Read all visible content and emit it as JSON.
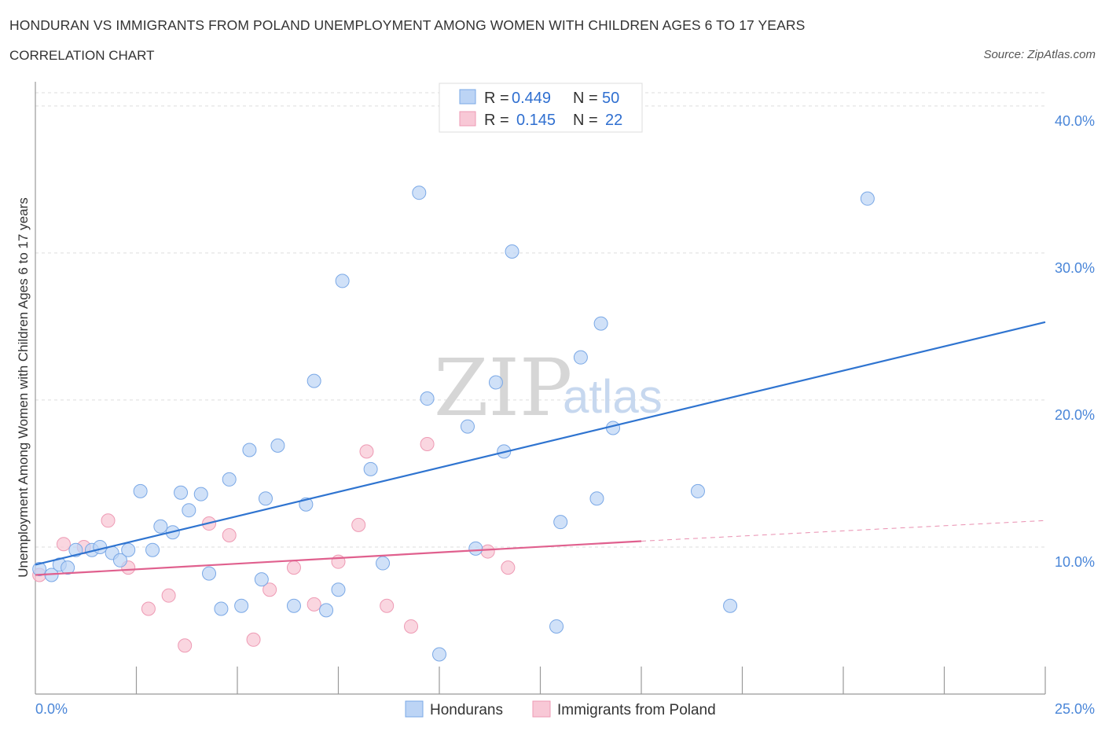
{
  "title": "HONDURAN VS IMMIGRANTS FROM POLAND UNEMPLOYMENT AMONG WOMEN WITH CHILDREN AGES 6 TO 17 YEARS",
  "subtitle": "CORRELATION CHART",
  "source": "Source: ZipAtlas.com",
  "watermark": {
    "zip": "ZIP",
    "atlas": "atlas"
  },
  "legend": {
    "rows": [
      {
        "r_label": "R =",
        "r_value": "0.449",
        "n_label": "N =",
        "n_value": "50"
      },
      {
        "r_label": "R =",
        "r_value": "0.145",
        "n_label": "N =",
        "n_value": "22"
      }
    ]
  },
  "bottom_legend": [
    "Hondurans",
    "Immigrants from Poland"
  ],
  "colors": {
    "hondurans_fill": "#bcd4f5",
    "hondurans_stroke": "#7aa8e6",
    "hondurans_line": "#2f74d0",
    "poland_fill": "#f8c8d6",
    "poland_stroke": "#ee9ab4",
    "poland_line": "#e0608e",
    "tick_color": "#4a86d8",
    "grid": "#dddddd"
  },
  "chart_data": {
    "type": "scatter",
    "xlabel": "",
    "ylabel": "Unemployment Among Women with Children Ages 6 to 17 years",
    "xlim": [
      0,
      25
    ],
    "ylim": [
      0,
      40.9
    ],
    "x_tick_labels": [
      "0.0%",
      "25.0%"
    ],
    "y_ticks": [
      10,
      20,
      30,
      40
    ],
    "y_tick_labels": [
      "10.0%",
      "20.0%",
      "30.0%",
      "40.0%"
    ],
    "series": [
      {
        "name": "Hondurans",
        "R": 0.449,
        "N": 50,
        "points": [
          [
            0.1,
            8.5
          ],
          [
            0.4,
            8.1
          ],
          [
            0.6,
            8.8
          ],
          [
            0.8,
            8.6
          ],
          [
            1.0,
            9.8
          ],
          [
            1.4,
            9.8
          ],
          [
            1.6,
            10.0
          ],
          [
            1.9,
            9.6
          ],
          [
            2.1,
            9.1
          ],
          [
            2.3,
            9.8
          ],
          [
            2.6,
            13.8
          ],
          [
            2.9,
            9.8
          ],
          [
            3.1,
            11.4
          ],
          [
            3.4,
            11.0
          ],
          [
            3.6,
            13.7
          ],
          [
            3.8,
            12.5
          ],
          [
            4.1,
            13.6
          ],
          [
            4.3,
            8.2
          ],
          [
            4.6,
            5.8
          ],
          [
            4.8,
            14.6
          ],
          [
            5.1,
            6.0
          ],
          [
            5.3,
            16.6
          ],
          [
            5.6,
            7.8
          ],
          [
            5.7,
            13.3
          ],
          [
            6.0,
            16.9
          ],
          [
            6.4,
            6.0
          ],
          [
            6.7,
            12.9
          ],
          [
            6.9,
            21.3
          ],
          [
            7.2,
            5.7
          ],
          [
            7.5,
            7.1
          ],
          [
            7.6,
            28.1
          ],
          [
            8.3,
            15.3
          ],
          [
            8.6,
            8.9
          ],
          [
            9.5,
            34.1
          ],
          [
            9.7,
            20.1
          ],
          [
            10.0,
            2.7
          ],
          [
            10.7,
            18.2
          ],
          [
            10.9,
            9.9
          ],
          [
            11.4,
            21.2
          ],
          [
            11.6,
            16.5
          ],
          [
            11.8,
            30.1
          ],
          [
            12.9,
            4.6
          ],
          [
            13.0,
            11.7
          ],
          [
            13.5,
            22.9
          ],
          [
            13.9,
            13.3
          ],
          [
            14.0,
            25.2
          ],
          [
            14.3,
            18.1
          ],
          [
            16.4,
            13.8
          ],
          [
            17.2,
            6.0
          ],
          [
            20.6,
            33.7
          ]
        ]
      },
      {
        "name": "Immigrants from Poland",
        "R": 0.145,
        "N": 22,
        "points": [
          [
            0.1,
            8.1
          ],
          [
            0.7,
            10.2
          ],
          [
            1.2,
            10.0
          ],
          [
            1.8,
            11.8
          ],
          [
            2.3,
            8.6
          ],
          [
            2.8,
            5.8
          ],
          [
            3.3,
            6.7
          ],
          [
            3.7,
            3.3
          ],
          [
            4.3,
            11.6
          ],
          [
            4.8,
            10.8
          ],
          [
            5.4,
            3.7
          ],
          [
            5.8,
            7.1
          ],
          [
            6.4,
            8.6
          ],
          [
            6.9,
            6.1
          ],
          [
            7.5,
            9.0
          ],
          [
            8.0,
            11.5
          ],
          [
            8.2,
            16.5
          ],
          [
            8.7,
            6.0
          ],
          [
            9.3,
            4.6
          ],
          [
            9.7,
            17.0
          ],
          [
            11.2,
            9.7
          ],
          [
            11.7,
            8.6
          ]
        ]
      }
    ],
    "trendlines": [
      {
        "series": "Hondurans",
        "x": [
          0,
          25
        ],
        "y": [
          8.8,
          25.3
        ],
        "style": "solid"
      },
      {
        "series": "Immigrants from Poland",
        "x": [
          0,
          15
        ],
        "y": [
          8.1,
          10.4
        ],
        "style": "solid"
      },
      {
        "series": "Immigrants from Poland",
        "x": [
          15,
          25
        ],
        "y": [
          10.4,
          11.8
        ],
        "style": "dashed"
      }
    ]
  }
}
